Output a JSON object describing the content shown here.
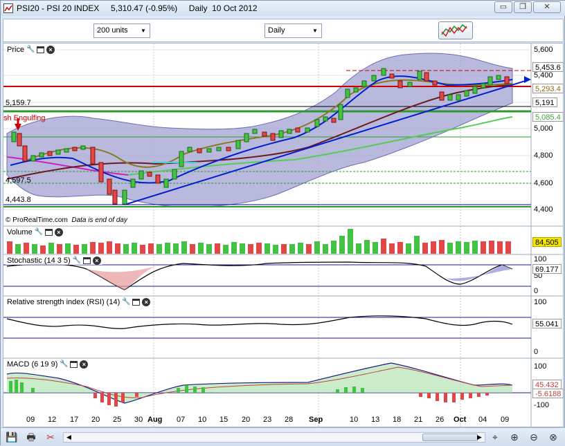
{
  "window": {
    "title": "PSI20 - PSI 20 INDEX     5,310.47 (-0.95%)     Daily  10 Oct 2012",
    "controls": [
      "minimize",
      "restore",
      "close"
    ]
  },
  "toolbar": {
    "units_select": "200 units",
    "period_select": "Daily",
    "chart_style_icon": "chart-style-icon"
  },
  "price_pane": {
    "label": "Price",
    "y_ticks": [
      "5,600",
      "5,400",
      "5,200",
      "5,000",
      "4,800",
      "4,600",
      "4,400"
    ],
    "tags": {
      "upper_band": "5,453.6",
      "last": "5,293.4",
      "level": "5,191",
      "ma": "5,085.4"
    },
    "levels": {
      "l1": "5,159.7",
      "l2": "4,597.5",
      "l3": "4,443.8"
    },
    "pattern": "sh Engulfing",
    "watermark": "© ProRealTime.com",
    "note": "Data is end of day"
  },
  "volume_pane": {
    "label": "Volume",
    "value": "84,505"
  },
  "stoch_pane": {
    "label": "Stochastic (14 3 5)",
    "ticks": [
      "100",
      "50",
      "0"
    ],
    "value": "69.177"
  },
  "rsi_pane": {
    "label": "Relative strength index (RSI) (14)",
    "ticks": [
      "100",
      "0"
    ],
    "value": "55.041"
  },
  "macd_pane": {
    "label": "MACD (6 19 9)",
    "ticks": [
      "100",
      "0",
      "-100"
    ],
    "value1": "45.432",
    "value2": "-5.6188"
  },
  "x_axis": [
    "09",
    "12",
    "17",
    "20",
    "25",
    "30",
    "Aug",
    "07",
    "10",
    "15",
    "20",
    "23",
    "28",
    "Sep",
    "10",
    "13",
    "18",
    "21",
    "26",
    "Oct",
    "04",
    "09"
  ],
  "colors": {
    "up": "#44c244",
    "down": "#e04848",
    "band_fill": "#a6a8d4",
    "accent_red": "#cc0000",
    "accent_green": "#33aa33"
  },
  "chart_data": {
    "type": "line",
    "title": "PSI20 - PSI 20 INDEX",
    "x": [
      "09",
      "12",
      "17",
      "20",
      "25",
      "30",
      "Aug",
      "07",
      "10",
      "15",
      "20",
      "23",
      "28",
      "Sep",
      "10",
      "13",
      "18",
      "21",
      "26",
      "Oct",
      "04",
      "09"
    ],
    "series": [
      {
        "name": "",
        "values": [
          4920,
          4760,
          4850,
          4760,
          4440,
          4620,
          4650,
          4800,
          4830,
          4860,
          4900,
          4920,
          4960,
          5030,
          5300,
          5370,
          5390,
          5410,
          5250,
          5270,
          5330,
          5310
        ]
      }
    ],
    "ylim": [
      4350,
      5650
    ],
    "grid": true
  }
}
